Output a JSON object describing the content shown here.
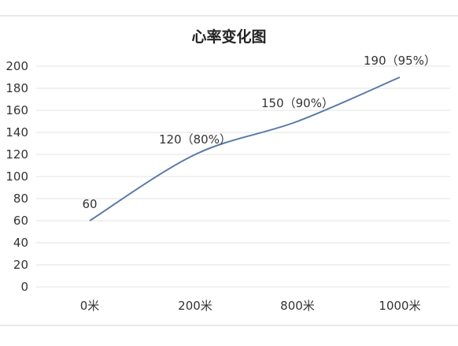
{
  "chart_data": {
    "type": "line",
    "title": "心率变化图",
    "xlabel": "",
    "ylabel": "",
    "categories": [
      "0米",
      "200米",
      "800米",
      "1000米"
    ],
    "values": [
      60,
      120,
      150,
      190
    ],
    "data_labels": [
      "60",
      "120（80%）",
      "150（90%）",
      "190（95%）"
    ],
    "ylim": [
      0,
      200
    ],
    "yticks": [
      "0",
      "20",
      "40",
      "60",
      "80",
      "100",
      "120",
      "140",
      "160",
      "180",
      "200"
    ],
    "ytick_values": [
      0,
      20,
      40,
      60,
      80,
      100,
      120,
      140,
      160,
      180,
      200
    ],
    "grid": true,
    "legend": "none",
    "line_color": "#5a7aa6",
    "smooth": true
  }
}
